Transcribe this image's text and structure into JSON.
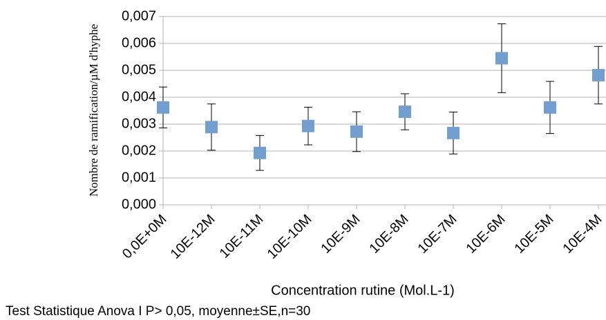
{
  "chart_data": {
    "type": "scatter",
    "categories": [
      "0,0E+0M",
      "10E-12M",
      "10E-11M",
      "10E-10M",
      "10E-9M",
      "10E-8M",
      "10E-7M",
      "10E-6M",
      "10E-5M",
      "10E-4M"
    ],
    "values": [
      0.00362,
      0.00289,
      0.00193,
      0.00293,
      0.00272,
      0.00346,
      0.00267,
      0.00545,
      0.00362,
      0.00482
    ],
    "errors": [
      0.00076,
      0.00086,
      0.00065,
      0.0007,
      0.00074,
      0.00067,
      0.00078,
      0.00128,
      0.00097,
      0.00107
    ],
    "color": "#729fcf",
    "ylim": [
      0,
      0.007
    ],
    "yticks": [
      {
        "value": 0,
        "label": "0,000"
      },
      {
        "value": 0.001,
        "label": "0,001"
      },
      {
        "value": 0.002,
        "label": "0,002"
      },
      {
        "value": 0.003,
        "label": "0,003"
      },
      {
        "value": 0.004,
        "label": "0,004"
      },
      {
        "value": 0.005,
        "label": "0,005"
      },
      {
        "value": 0.006,
        "label": "0,006"
      },
      {
        "value": 0.007,
        "label": "0,007"
      }
    ],
    "grid": true,
    "x_label": "Concentration rutine (Mol.L-1)",
    "y_label": "Nombre de ramification/µM d'hyphe",
    "annotation": "Test Statistique Anova I P> 0,05, moyenne±SE,n=30"
  }
}
